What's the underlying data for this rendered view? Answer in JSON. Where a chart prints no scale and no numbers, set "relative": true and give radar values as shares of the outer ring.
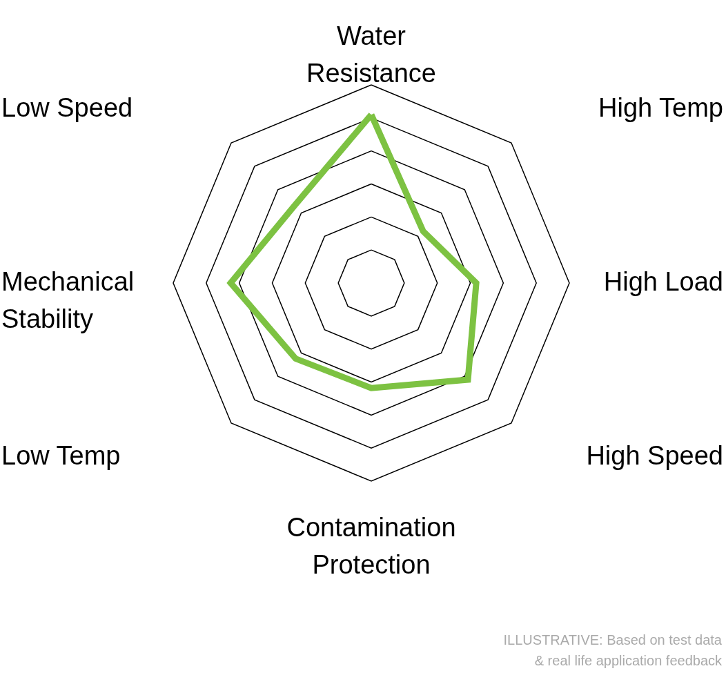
{
  "chart_data": {
    "type": "radar",
    "categories": [
      "Water Resistance",
      "High Temp",
      "High Load",
      "High Speed",
      "Contamination Protection",
      "Low Temp",
      "Mechanical Stability",
      "Low Speed"
    ],
    "relative": true,
    "grid": true,
    "series": [
      {
        "color": "#7dc242",
        "values": [
          0.85,
          0.37,
          0.53,
          0.69,
          0.53,
          0.54,
          0.71,
          0.55
        ]
      }
    ],
    "annotations": [
      "ILLUSTRATIVE: Based on test data & real life application feedback"
    ]
  }
}
